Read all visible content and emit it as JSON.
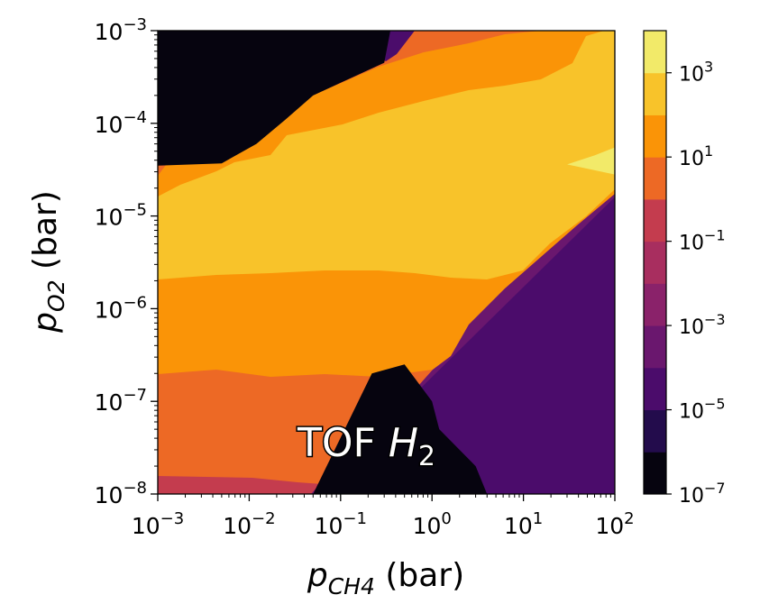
{
  "chart_data": {
    "type": "heatmap",
    "subtype": "filled-contour",
    "colormap": "inferno",
    "annotation": {
      "base": "TOF ",
      "italic": "H",
      "sub": "2"
    },
    "xlabel": {
      "italic": "p",
      "sub": "CH4",
      "rest": " (bar)"
    },
    "ylabel": {
      "italic": "p",
      "sub": "O2",
      "rest": " (bar)"
    },
    "x_scale": "log",
    "y_scale": "log",
    "xlim": [
      0.001,
      100
    ],
    "ylim": [
      1e-08,
      0.001
    ],
    "x_ticks": [
      {
        "base": "10",
        "exp": "−3",
        "value": 0.001
      },
      {
        "base": "10",
        "exp": "−2",
        "value": 0.01
      },
      {
        "base": "10",
        "exp": "−1",
        "value": 0.1
      },
      {
        "base": "10",
        "exp": "0",
        "value": 1
      },
      {
        "base": "10",
        "exp": "1",
        "value": 10
      },
      {
        "base": "10",
        "exp": "2",
        "value": 100
      }
    ],
    "y_ticks": [
      {
        "base": "10",
        "exp": "−8",
        "value": 1e-08
      },
      {
        "base": "10",
        "exp": "−7",
        "value": 1e-07
      },
      {
        "base": "10",
        "exp": "−6",
        "value": 1e-06
      },
      {
        "base": "10",
        "exp": "−5",
        "value": 1e-05
      },
      {
        "base": "10",
        "exp": "−4",
        "value": 0.0001
      },
      {
        "base": "10",
        "exp": "−3",
        "value": 0.001
      }
    ],
    "colorbar": {
      "scale": "log",
      "range": [
        1e-07,
        10000
      ],
      "levels": [
        {
          "lo": 1e-07,
          "hi": 1e-06,
          "color": "#06040f"
        },
        {
          "lo": 1e-06,
          "hi": 1e-05,
          "color": "#230c4c"
        },
        {
          "lo": 1e-05,
          "hi": 0.0001,
          "color": "#4b0c6b"
        },
        {
          "lo": 0.0001,
          "hi": 0.001,
          "color": "#6a176e"
        },
        {
          "lo": 0.001,
          "hi": 0.01,
          "color": "#8a226a"
        },
        {
          "lo": 0.01,
          "hi": 0.1,
          "color": "#a82e5f"
        },
        {
          "lo": 0.1,
          "hi": 1,
          "color": "#c43c4e"
        },
        {
          "lo": 1,
          "hi": 10,
          "color": "#ed6925"
        },
        {
          "lo": 10,
          "hi": 100,
          "color": "#fa9407"
        },
        {
          "lo": 100,
          "hi": 1000,
          "color": "#f8c32a"
        },
        {
          "lo": 1000,
          "hi": 10000,
          "color": "#f2ea69"
        }
      ],
      "tick_labels": [
        {
          "base": "10",
          "exp": "−7",
          "value": 1e-07
        },
        {
          "base": "10",
          "exp": "−5",
          "value": 1e-05
        },
        {
          "base": "10",
          "exp": "−3",
          "value": 0.001
        },
        {
          "base": "10",
          "exp": "−1",
          "value": 0.1
        },
        {
          "base": "10",
          "exp": "1",
          "value": 10
        },
        {
          "base": "10",
          "exp": "3",
          "value": 1000
        }
      ]
    },
    "regions": [
      {
        "name": "high-tof-pocket",
        "level": "10^3-10^4",
        "color": "#f2ea69",
        "vertices": [
          [
            30,
            3.6e-05
          ],
          [
            100,
            2.8e-05
          ],
          [
            100,
            5.5e-05
          ],
          [
            60,
            4.5e-05
          ]
        ]
      },
      {
        "name": "upper-left-zero-region",
        "level": "<10^-6",
        "color": "#06040f",
        "vertices": [
          [
            0.001,
            0.001
          ],
          [
            0.35,
            0.001
          ],
          [
            0.3,
            0.00045
          ],
          [
            0.05,
            0.0002
          ],
          [
            0.025,
            0.00011
          ],
          [
            0.012,
            6e-05
          ],
          [
            0.005,
            3.7e-05
          ],
          [
            0.001,
            3.5e-05
          ]
        ]
      },
      {
        "name": "lower-right-purple-region",
        "level": "10^-5-10^-3",
        "color": "#4b0c6b",
        "vertices": [
          [
            100,
            1.6e-05
          ],
          [
            100,
            1e-08
          ],
          [
            0.05,
            1e-08
          ]
        ]
      },
      {
        "name": "lower-right-black-pocket",
        "level": "<10^-6",
        "color": "#06040f",
        "vertices": [
          [
            0.05,
            1e-08
          ],
          [
            4,
            1e-08
          ],
          [
            3,
            2e-08
          ],
          [
            1.2,
            5e-08
          ],
          [
            1,
            1e-07
          ],
          [
            0.5,
            2.5e-07
          ],
          [
            0.22,
            2e-07
          ]
        ]
      }
    ]
  }
}
